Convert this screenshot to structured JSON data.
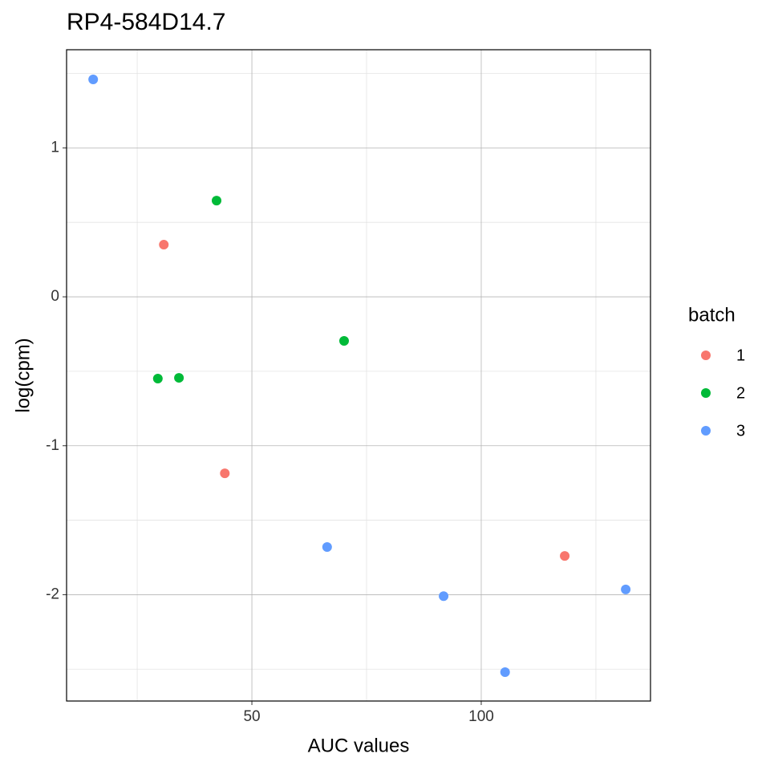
{
  "chart_data": {
    "type": "scatter",
    "title": "RP4-584D14.7",
    "x_label": "AUC values",
    "y_label": "log(cpm)",
    "legend_title": "batch",
    "legend_position": "right",
    "series": [
      {
        "name": "1",
        "color": "#F8766D",
        "x": [
          30.8,
          44.1,
          118.2
        ],
        "values": [
          0.35,
          -1.185,
          -1.74
        ]
      },
      {
        "name": "2",
        "color": "#00BA38",
        "x": [
          42.3,
          70.1,
          29.5,
          34.1
        ],
        "values": [
          0.646,
          -0.296,
          -0.549,
          -0.544
        ]
      },
      {
        "name": "3",
        "color": "#619CFF",
        "x": [
          15.4,
          66.4,
          91.8,
          105.2,
          131.5
        ],
        "values": [
          1.46,
          -1.68,
          -2.01,
          -2.52,
          -1.965
        ]
      }
    ],
    "xlim": [
      9.6,
      136.9
    ],
    "ylim": [
      -2.714,
      1.659
    ],
    "xticks": [
      50,
      100
    ],
    "yticks": [
      -2,
      -1,
      0,
      1
    ],
    "x_minor_grid": [
      25,
      75,
      125
    ],
    "y_minor_grid": [
      -2.5,
      -1.5,
      -0.5,
      0.5,
      1.5
    ],
    "grid": true
  }
}
